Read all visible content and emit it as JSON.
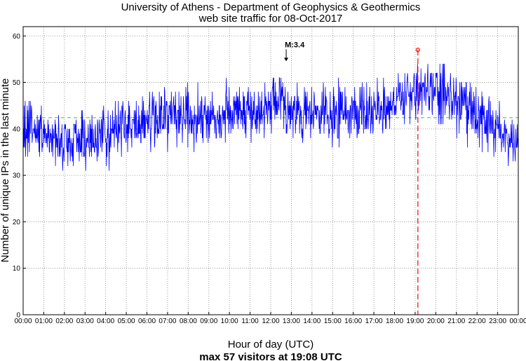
{
  "chart_data": {
    "type": "line",
    "title_line1": "University of Athens - Department of Geophysics & Geothermics",
    "title_line2": "web site traffic for 08-Oct-2017",
    "xlabel": "Hour of day (UTC)",
    "ylabel": "Number of unique IPs in the last minute",
    "caption": "max 57 visitors at 19:08 UTC",
    "x_ticks": [
      "00:00",
      "01:00",
      "02:00",
      "03:00",
      "04:00",
      "05:00",
      "06:00",
      "07:00",
      "08:00",
      "09:00",
      "10:00",
      "11:00",
      "12:00",
      "13:00",
      "14:00",
      "15:00",
      "16:00",
      "17:00",
      "18:00",
      "19:00",
      "20:00",
      "21:00",
      "22:00",
      "23:00",
      "00:00"
    ],
    "y_ticks": [
      "0",
      "10",
      "20",
      "30",
      "40",
      "50",
      "60"
    ],
    "xlim_hours": [
      0,
      24
    ],
    "ylim": [
      0,
      62
    ],
    "grid": true,
    "series_color": "#0000ff",
    "mean_line": {
      "value": 42.4,
      "color": "#33cc33"
    },
    "max_marker": {
      "hour": 19.133,
      "value": 57,
      "color": "#ff0000"
    },
    "earthquake_annotation": {
      "label": "M:3.4",
      "hour": 12.75,
      "value": 55
    },
    "trend_hourly": [
      {
        "hour": 0.0,
        "value": 40
      },
      {
        "hour": 0.5,
        "value": 40
      },
      {
        "hour": 1.0,
        "value": 39
      },
      {
        "hour": 1.5,
        "value": 38
      },
      {
        "hour": 2.0,
        "value": 37
      },
      {
        "hour": 2.5,
        "value": 37
      },
      {
        "hour": 3.0,
        "value": 38
      },
      {
        "hour": 3.5,
        "value": 38
      },
      {
        "hour": 4.0,
        "value": 39
      },
      {
        "hour": 4.5,
        "value": 40
      },
      {
        "hour": 5.0,
        "value": 41
      },
      {
        "hour": 5.5,
        "value": 41
      },
      {
        "hour": 6.0,
        "value": 42
      },
      {
        "hour": 6.5,
        "value": 42
      },
      {
        "hour": 7.0,
        "value": 43
      },
      {
        "hour": 7.5,
        "value": 43
      },
      {
        "hour": 8.0,
        "value": 43
      },
      {
        "hour": 8.5,
        "value": 43
      },
      {
        "hour": 9.0,
        "value": 43
      },
      {
        "hour": 9.5,
        "value": 43
      },
      {
        "hour": 10.0,
        "value": 44
      },
      {
        "hour": 10.5,
        "value": 44
      },
      {
        "hour": 11.0,
        "value": 44
      },
      {
        "hour": 11.5,
        "value": 44
      },
      {
        "hour": 12.0,
        "value": 45
      },
      {
        "hour": 12.5,
        "value": 45
      },
      {
        "hour": 13.0,
        "value": 44
      },
      {
        "hour": 13.5,
        "value": 43
      },
      {
        "hour": 14.0,
        "value": 43
      },
      {
        "hour": 14.5,
        "value": 43
      },
      {
        "hour": 15.0,
        "value": 43
      },
      {
        "hour": 15.5,
        "value": 43
      },
      {
        "hour": 16.0,
        "value": 44
      },
      {
        "hour": 16.5,
        "value": 44
      },
      {
        "hour": 17.0,
        "value": 44
      },
      {
        "hour": 17.5,
        "value": 45
      },
      {
        "hour": 18.0,
        "value": 46
      },
      {
        "hour": 18.5,
        "value": 47
      },
      {
        "hour": 19.0,
        "value": 48
      },
      {
        "hour": 19.5,
        "value": 48
      },
      {
        "hour": 20.0,
        "value": 48
      },
      {
        "hour": 20.5,
        "value": 47
      },
      {
        "hour": 21.0,
        "value": 46
      },
      {
        "hour": 21.5,
        "value": 44
      },
      {
        "hour": 22.0,
        "value": 42
      },
      {
        "hour": 22.5,
        "value": 41
      },
      {
        "hour": 23.0,
        "value": 40
      },
      {
        "hour": 23.5,
        "value": 38
      },
      {
        "hour": 24.0,
        "value": 36
      }
    ],
    "noise_amplitude": 4.5
  }
}
